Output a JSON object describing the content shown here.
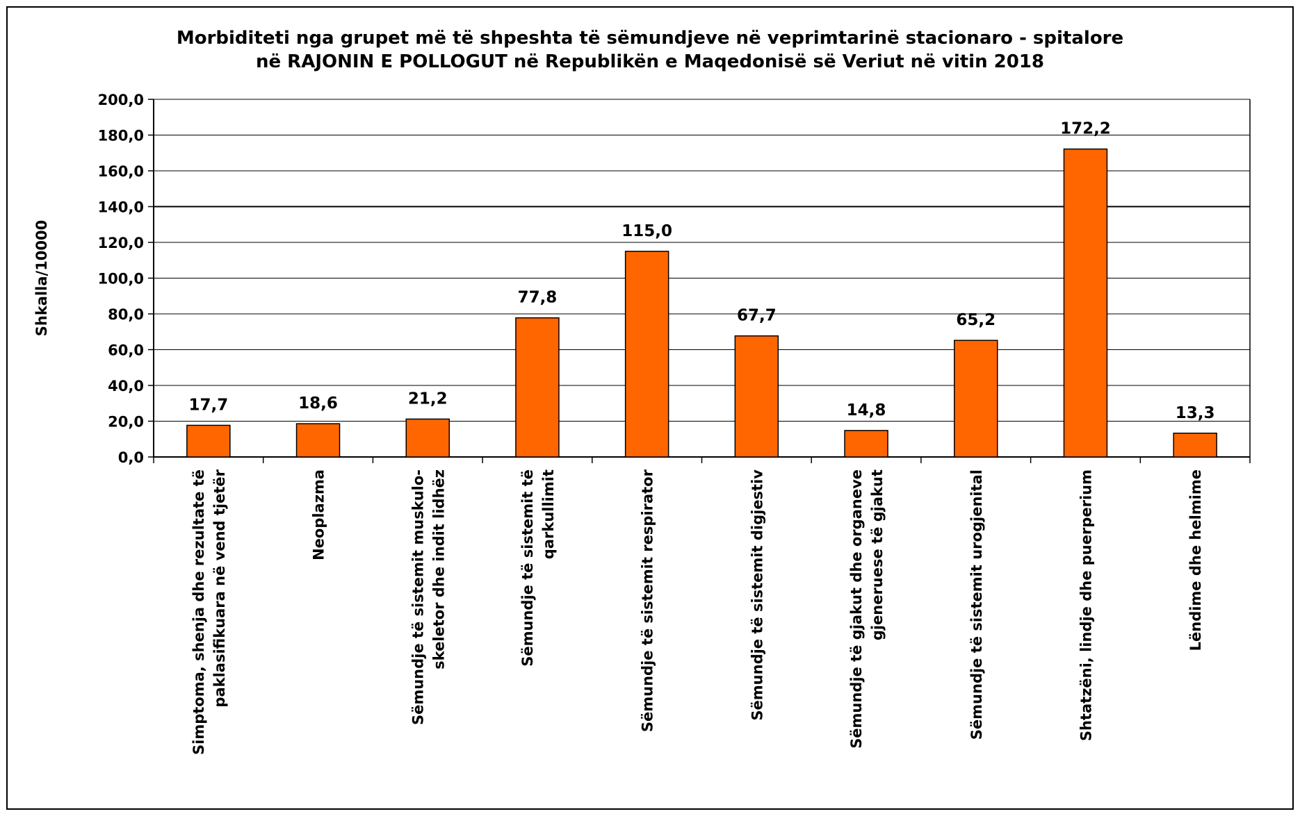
{
  "chart_data": {
    "type": "bar",
    "title_line1": "Morbiditeti nga grupet më të shpeshta të sëmundjeve në veprimtarinë stacionaro - spitalore",
    "title_line2": "në RAJONIN E POLLOGUT në Republikën e Maqedonisë së Veriut në vitin 2018",
    "ylabel": "Shkalla/10000",
    "xlabel": "",
    "ylim": [
      0,
      200
    ],
    "yticks": [
      "0,0",
      "20,0",
      "40,0",
      "60,0",
      "80,0",
      "100,0",
      "120,0",
      "140,0",
      "160,0",
      "180,0",
      "200,0"
    ],
    "categories": [
      [
        "Simptoma, shenja dhe rezultate të",
        "paklasifikuara  në vend tjetër"
      ],
      [
        "Neoplazma"
      ],
      [
        "Sëmundje të sistemit muskulo-",
        "skeletor dhe indit lidhëz"
      ],
      [
        "Sëmundje  të sistemit të",
        "qarkullimit"
      ],
      [
        "Sëmundje të sistemit respirator"
      ],
      [
        "Sëmundje të sistemit digjestiv"
      ],
      [
        "Sëmundje të gjakut dhe organeve",
        "gjeneruese të gjakut"
      ],
      [
        "Sëmundje të sistemit urogjenital"
      ],
      [
        "Shtatzëni, lindje dhe puerperium"
      ],
      [
        "Lëndime dhe helmime"
      ]
    ],
    "values": [
      17.7,
      18.6,
      21.2,
      77.8,
      115.0,
      67.7,
      14.8,
      65.2,
      172.2,
      13.3
    ],
    "value_labels": [
      "17,7",
      "18,6",
      "21,2",
      "77,8",
      "115,0",
      "67,7",
      "14,8",
      "65,2",
      "172,2",
      "13,3"
    ],
    "grid": true,
    "colors": {
      "bar": "#FF6600",
      "bar_edge": "#000000",
      "grid": "#000000",
      "frame": "#000000"
    }
  }
}
